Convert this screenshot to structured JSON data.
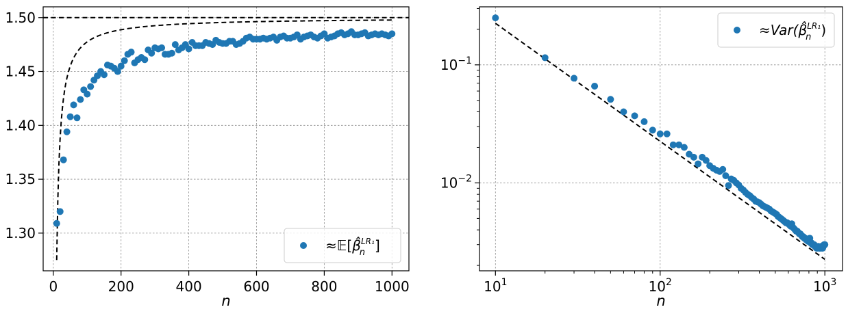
{
  "chart_data": [
    {
      "type": "scatter",
      "xlabel": "n",
      "ylabel": "",
      "xlim": [
        -30,
        1050
      ],
      "ylim": [
        1.265,
        1.51
      ],
      "xscale": "linear",
      "yscale": "linear",
      "xticks": [
        0,
        200,
        400,
        600,
        800,
        1000
      ],
      "xtick_labels": [
        "0",
        "200",
        "400",
        "600",
        "800",
        "1000"
      ],
      "yticks": [
        1.3,
        1.35,
        1.4,
        1.45,
        1.5
      ],
      "ytick_labels": [
        "1.30",
        "1.35",
        "1.40",
        "1.45",
        "1.50"
      ],
      "grid": true,
      "legend_position": "lower-right",
      "legend": {
        "prefix": "≈",
        "main": "𝔼[",
        "beta": "β̂",
        "sup": "LR₁",
        "sub": "n",
        "suffix": "]"
      },
      "series": [
        {
          "marker": "o",
          "color": "#1f77b4",
          "x": [
            10,
            20,
            30,
            40,
            50,
            60,
            70,
            80,
            90,
            100,
            110,
            120,
            130,
            140,
            150,
            160,
            170,
            180,
            190,
            200,
            210,
            220,
            230,
            240,
            250,
            260,
            270,
            280,
            290,
            300,
            310,
            320,
            330,
            340,
            350,
            360,
            370,
            380,
            390,
            400,
            410,
            420,
            430,
            440,
            450,
            460,
            470,
            480,
            490,
            500,
            510,
            520,
            530,
            540,
            550,
            560,
            570,
            580,
            590,
            600,
            610,
            620,
            630,
            640,
            650,
            660,
            670,
            680,
            690,
            700,
            710,
            720,
            730,
            740,
            750,
            760,
            770,
            780,
            790,
            800,
            810,
            820,
            830,
            840,
            850,
            860,
            870,
            880,
            890,
            900,
            910,
            920,
            930,
            940,
            950,
            960,
            970,
            980,
            990,
            1000
          ],
          "y": [
            1.309,
            1.32,
            1.368,
            1.394,
            1.408,
            1.419,
            1.407,
            1.424,
            1.433,
            1.429,
            1.436,
            1.442,
            1.446,
            1.45,
            1.447,
            1.456,
            1.455,
            1.453,
            1.45,
            1.455,
            1.46,
            1.466,
            1.468,
            1.458,
            1.461,
            1.463,
            1.461,
            1.47,
            1.467,
            1.472,
            1.471,
            1.472,
            1.466,
            1.466,
            1.467,
            1.475,
            1.47,
            1.472,
            1.475,
            1.471,
            1.477,
            1.474,
            1.474,
            1.474,
            1.477,
            1.476,
            1.475,
            1.479,
            1.477,
            1.476,
            1.476,
            1.478,
            1.478,
            1.475,
            1.476,
            1.478,
            1.481,
            1.482,
            1.48,
            1.48,
            1.48,
            1.481,
            1.48,
            1.481,
            1.482,
            1.479,
            1.482,
            1.483,
            1.481,
            1.481,
            1.482,
            1.484,
            1.48,
            1.482,
            1.483,
            1.484,
            1.482,
            1.481,
            1.483,
            1.485,
            1.481,
            1.482,
            1.483,
            1.485,
            1.486,
            1.484,
            1.485,
            1.487,
            1.484,
            1.484,
            1.485,
            1.486,
            1.483,
            1.484,
            1.485,
            1.484,
            1.485,
            1.484,
            1.483,
            1.485
          ]
        }
      ],
      "reference_lines": [
        {
          "kind": "horizontal",
          "y": 1.5
        },
        {
          "kind": "curve",
          "formula": "1.5 - 2.25/n",
          "x_range": [
            10,
            1000
          ]
        }
      ]
    },
    {
      "type": "scatter",
      "xlabel": "n",
      "ylabel": "",
      "xlim": [
        8.0,
        1280
      ],
      "ylim": [
        0.0018,
        0.31
      ],
      "xscale": "log",
      "yscale": "log",
      "xticks": [
        10,
        100,
        1000
      ],
      "xtick_labels": [
        {
          "base": "10",
          "exp": "1"
        },
        {
          "base": "10",
          "exp": "2"
        },
        {
          "base": "10",
          "exp": "3"
        }
      ],
      "yticks": [
        0.01,
        0.1
      ],
      "ytick_labels": [
        {
          "base": "10",
          "exp": "−2"
        },
        {
          "base": "10",
          "exp": "−1"
        }
      ],
      "grid": true,
      "legend_position": "upper-right",
      "legend": {
        "prefix": "≈",
        "main": "Var(",
        "beta": "β̂",
        "sup": "LR₁",
        "sub": "n",
        "suffix": ")"
      },
      "series": [
        {
          "marker": "o",
          "color": "#1f77b4",
          "x": [
            10,
            20,
            30,
            40,
            50,
            60,
            70,
            80,
            90,
            100,
            110,
            120,
            130,
            140,
            150,
            160,
            170,
            180,
            190,
            200,
            210,
            220,
            230,
            240,
            250,
            260,
            270,
            280,
            290,
            300,
            310,
            320,
            330,
            340,
            350,
            360,
            370,
            380,
            390,
            400,
            410,
            420,
            430,
            440,
            450,
            460,
            470,
            480,
            490,
            500,
            510,
            520,
            530,
            540,
            550,
            560,
            570,
            580,
            590,
            600,
            610,
            620,
            630,
            640,
            650,
            660,
            670,
            680,
            690,
            700,
            710,
            720,
            730,
            740,
            750,
            760,
            770,
            780,
            790,
            800,
            810,
            820,
            830,
            840,
            850,
            860,
            870,
            880,
            890,
            900,
            910,
            920,
            930,
            940,
            950,
            960,
            970,
            980,
            990,
            1000
          ],
          "y": [
            0.25,
            0.115,
            0.077,
            0.066,
            0.051,
            0.04,
            0.037,
            0.033,
            0.028,
            0.026,
            0.026,
            0.021,
            0.021,
            0.02,
            0.0175,
            0.0165,
            0.0145,
            0.0165,
            0.0155,
            0.014,
            0.0133,
            0.0128,
            0.0125,
            0.013,
            0.0115,
            0.0095,
            0.0108,
            0.0105,
            0.01,
            0.0096,
            0.009,
            0.0087,
            0.0083,
            0.008,
            0.0078,
            0.0075,
            0.0073,
            0.007,
            0.0069,
            0.0068,
            0.0066,
            0.0064,
            0.0063,
            0.0062,
            0.0061,
            0.006,
            0.0058,
            0.0057,
            0.0056,
            0.0055,
            0.0054,
            0.0052,
            0.0051,
            0.005,
            0.0049,
            0.0048,
            0.0047,
            0.0046,
            0.0046,
            0.0045,
            0.0044,
            0.0043,
            0.0045,
            0.0042,
            0.0041,
            0.004,
            0.0039,
            0.0039,
            0.0038,
            0.0037,
            0.0037,
            0.0036,
            0.0035,
            0.0035,
            0.0034,
            0.0034,
            0.0033,
            0.0033,
            0.0032,
            0.0032,
            0.0034,
            0.0031,
            0.0031,
            0.003,
            0.003,
            0.003,
            0.0029,
            0.0029,
            0.0028,
            0.0028,
            0.0029,
            0.0028,
            0.0028,
            0.0028,
            0.0029,
            0.0028,
            0.0028,
            0.0029,
            0.003,
            0.003
          ]
        }
      ],
      "reference_lines": [
        {
          "kind": "curve",
          "formula": "2.25/n",
          "x_range": [
            10,
            1000
          ]
        }
      ]
    }
  ]
}
